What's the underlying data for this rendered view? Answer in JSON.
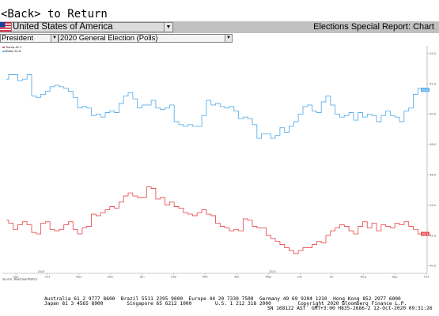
{
  "back_link": {
    "text": "<Back> to Return"
  },
  "top_bar": {
    "country": "United States of America",
    "report_title": "Elections Special Report: Chart"
  },
  "sub_bar": {
    "race": "President",
    "poll_type": "2020 General Election (Polls)"
  },
  "colors": {
    "trump": "#e8545a",
    "biden": "#5fb0ea",
    "panel_bg": "#c0c0c0"
  },
  "chart_data": {
    "type": "line",
    "legend": [
      {
        "name": "Trump 42.1",
        "color": "#e8545a"
      },
      {
        "name": "Biden 51.6",
        "color": "#5fb0ea"
      }
    ],
    "source": "Source: RealClearPolitics",
    "x_tick_labels": [
      "Sep",
      "Oct",
      "Nov",
      "Dec",
      "Jan",
      "Feb",
      "Mar",
      "Apr",
      "May",
      "Jun",
      "Jul",
      "Aug",
      "Sep",
      "Oct"
    ],
    "x_year_labels": [
      "2019",
      "2020"
    ],
    "y_tick_labels": [
      "54.0",
      "52.0",
      "50.0",
      "48.0",
      "46.0",
      "44.0",
      "42.0",
      "40.0"
    ],
    "ylim": [
      39.5,
      54.5
    ],
    "last_values": {
      "biden": "51.6",
      "trump": "42.1"
    },
    "series": [
      {
        "name": "Biden",
        "key": "biden",
        "values": [
          52.3,
          52.6,
          52.6,
          52.2,
          52.3,
          52.6,
          51.2,
          51.1,
          51.3,
          51.5,
          51.8,
          51.9,
          51.8,
          51.7,
          51.5,
          51.1,
          50.4,
          50.5,
          50.4,
          49.9,
          50.0,
          49.8,
          50.1,
          50.2,
          50.1,
          50.7,
          51.2,
          51.4,
          51.0,
          50.4,
          50.6,
          50.6,
          50.9,
          50.4,
          50.3,
          50.4,
          50.6,
          49.5,
          49.3,
          49.2,
          49.3,
          49.2,
          49.2,
          49.9,
          50.9,
          50.6,
          50.7,
          50.5,
          50.4,
          50.5,
          50.2,
          49.7,
          49.8,
          49.7,
          49.3,
          48.4,
          48.7,
          48.7,
          48.4,
          48.6,
          49.1,
          48.8,
          49.2,
          49.5,
          50.0,
          50.5,
          50.6,
          50.2,
          50.1,
          50.8,
          51.2,
          50.6,
          50.0,
          49.8,
          49.9,
          50.1,
          49.6,
          50.1,
          49.8,
          50.0,
          49.9,
          49.5,
          49.9,
          50.2,
          49.9,
          49.8,
          49.5,
          50.2,
          50.4,
          51.3,
          51.7,
          51.6
        ]
      },
      {
        "name": "Trump",
        "key": "trump",
        "values": [
          43.0,
          42.8,
          42.4,
          42.7,
          42.9,
          42.7,
          42.2,
          42.1,
          42.8,
          42.9,
          42.4,
          42.3,
          42.4,
          42.7,
          42.9,
          42.4,
          42.1,
          42.5,
          42.6,
          43.4,
          43.3,
          43.5,
          43.7,
          43.9,
          43.8,
          44.2,
          44.6,
          44.8,
          44.6,
          44.5,
          44.5,
          45.2,
          45.1,
          44.4,
          44.5,
          44.0,
          44.2,
          43.9,
          43.8,
          43.5,
          43.4,
          43.3,
          43.5,
          43.7,
          43.4,
          43.3,
          42.8,
          42.6,
          42.5,
          42.3,
          42.4,
          42.3,
          43.1,
          43.0,
          42.6,
          42.5,
          42.5,
          42.0,
          41.8,
          41.6,
          41.4,
          41.2,
          41.0,
          40.8,
          41.0,
          41.2,
          41.2,
          41.4,
          41.6,
          41.5,
          42.0,
          42.3,
          42.5,
          42.7,
          42.6,
          42.3,
          42.1,
          42.6,
          42.9,
          42.5,
          42.8,
          42.3,
          42.7,
          42.6,
          42.5,
          42.8,
          42.7,
          42.9,
          42.6,
          42.4,
          42.1,
          42.1
        ]
      }
    ]
  },
  "footer": {
    "line1": "Australia 61 2 9777 8600  Brazil 5511 2395 9000  Europe 44 20 7330 7500  Germany 49 69 9204 1210  Hong Kong 852 2977 6000",
    "line2": "Japan 81 3 4565 8900        Singapore 65 6212 1000        U.S. 1 212 318 2000         Copyright 2020 Bloomberg Finance L.P.",
    "line3": "SN 168122 AST  GMT+3:00 H835-2686-2 12-Oct-2020 09:31:26"
  }
}
